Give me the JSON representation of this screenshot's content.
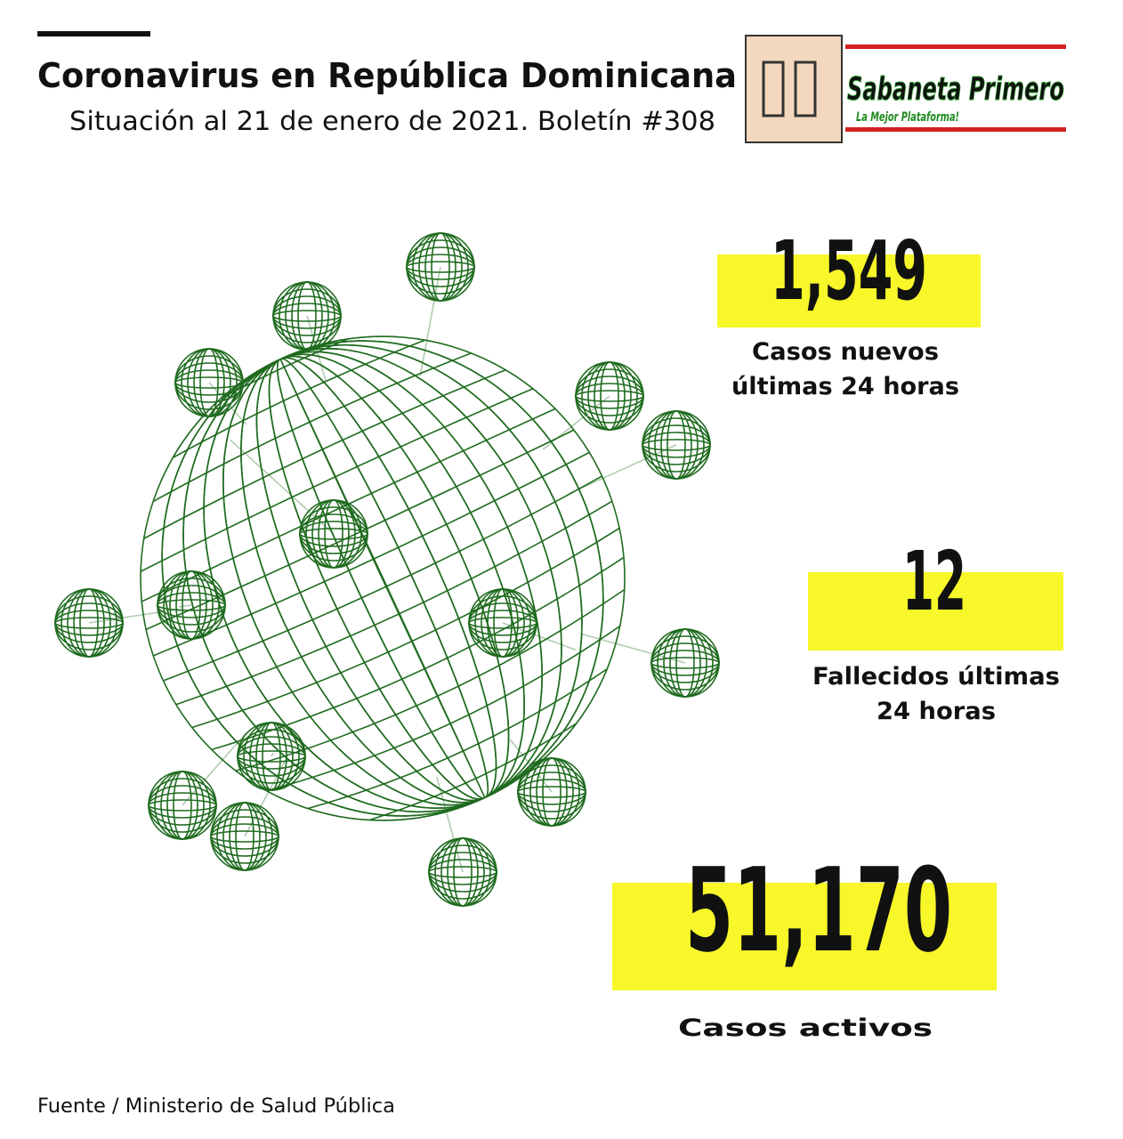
{
  "header": {
    "title": "Coronavirus en República Dominicana",
    "subtitle": "Situación al 21 de enero de 2021. Boletín #308"
  },
  "logo": {
    "name": "Sabaneta Primero",
    "tagline": "La Mejor Plataforma!"
  },
  "stats": [
    {
      "value": "1,549",
      "label_lines": [
        "Casos nuevos",
        "últimas 24 horas"
      ]
    },
    {
      "value": "12",
      "label_lines": [
        "Fallecidos últimas",
        "24 horas"
      ]
    },
    {
      "value": "51,170",
      "label_lines": [
        "Casos activos"
      ]
    }
  ],
  "source": "Fuente / Ministerio de Salud Pública"
}
